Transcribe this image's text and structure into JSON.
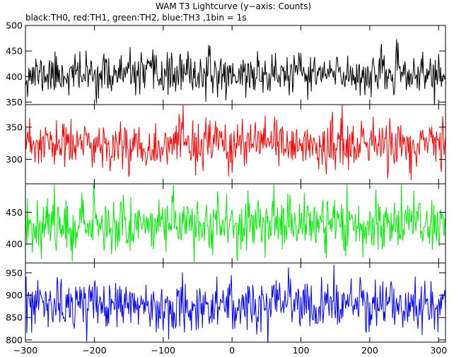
{
  "chart_data": {
    "type": "line",
    "title": "WAM T3 Lightcurve (y−axis: Counts)",
    "subtitle": "black:TH0, red:TH1, green:TH2, blue:TH3 ,1bin = 1s",
    "xlim": [
      -300,
      310
    ],
    "x_ticks": [
      -300,
      -200,
      -100,
      0,
      100,
      200,
      300
    ],
    "x_tick_labels": [
      "−300",
      "−200",
      "−100",
      "0",
      "100",
      "200",
      "300"
    ],
    "bin_seconds": 1,
    "panels": [
      {
        "series": "TH0",
        "color": "#000000",
        "ylim": [
          345,
          500
        ],
        "y_ticks": [
          350,
          400,
          450,
          500
        ],
        "y_tick_labels": [
          "350",
          "400",
          "450",
          "500"
        ],
        "mean": 404,
        "std": 20,
        "seed": 11
      },
      {
        "series": "TH1",
        "color": "#ff0000",
        "ylim": [
          262,
          385
        ],
        "y_ticks": [
          300,
          350
        ],
        "y_tick_labels": [
          "300",
          "350"
        ],
        "mean": 322,
        "std": 19,
        "seed": 23
      },
      {
        "series": "TH2",
        "color": "#00ee00",
        "ylim": [
          370,
          495
        ],
        "y_ticks": [
          400,
          450
        ],
        "y_tick_labels": [
          "400",
          "450"
        ],
        "mean": 432,
        "std": 22,
        "seed": 37
      },
      {
        "series": "TH3",
        "color": "#0000ff",
        "ylim": [
          795,
          972
        ],
        "y_ticks": [
          800,
          850,
          900,
          950
        ],
        "y_tick_labels": [
          "800",
          "850",
          "900",
          "950"
        ],
        "mean": 877,
        "std": 28,
        "seed": 53
      }
    ]
  }
}
